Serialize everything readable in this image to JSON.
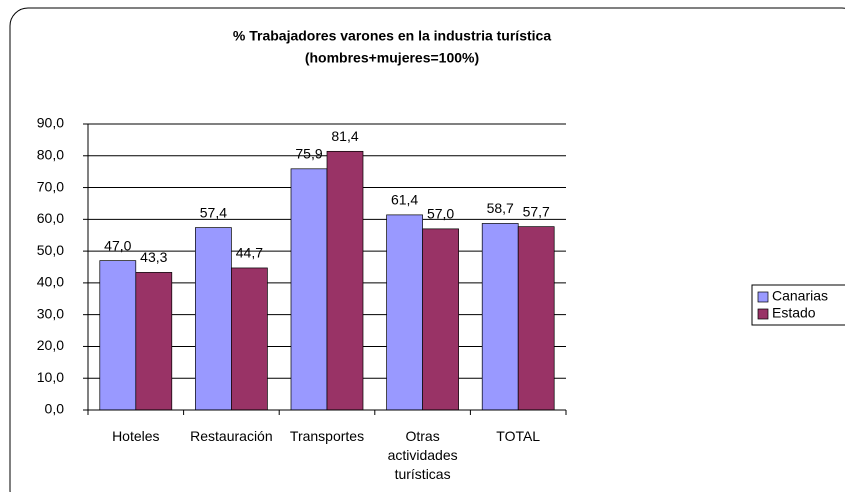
{
  "chart_data": {
    "type": "bar",
    "title": "% Trabajadores varones en la industria turística",
    "subtitle": "(hombres+mujeres=100%)",
    "categories": [
      "Hoteles",
      "Restauración",
      "Transportes",
      "Otras actividades turísticas",
      "TOTAL"
    ],
    "series": [
      {
        "name": "Canarias",
        "color": "#9999ff",
        "values": [
          47.0,
          57.4,
          75.9,
          61.4,
          58.7
        ],
        "value_labels": [
          "47,0",
          "57,4",
          "75,9",
          "61,4",
          "58,7"
        ]
      },
      {
        "name": "Estado",
        "color": "#993366",
        "values": [
          43.3,
          44.7,
          81.4,
          57.0,
          57.7
        ],
        "value_labels": [
          "43,3",
          "44,7",
          "81,4",
          "57,0",
          "57,7"
        ]
      }
    ],
    "ylim": [
      0,
      90
    ],
    "yticks": [
      {
        "value": 0,
        "label": "0,0"
      },
      {
        "value": 10,
        "label": "10,0"
      },
      {
        "value": 20,
        "label": "20,0"
      },
      {
        "value": 30,
        "label": "30,0"
      },
      {
        "value": 40,
        "label": "40,0"
      },
      {
        "value": 50,
        "label": "50,0"
      },
      {
        "value": 60,
        "label": "60,0"
      },
      {
        "value": 70,
        "label": "70,0"
      },
      {
        "value": 80,
        "label": "80,0"
      },
      {
        "value": 90,
        "label": "90,0"
      }
    ],
    "grid": true,
    "legend": "right"
  }
}
